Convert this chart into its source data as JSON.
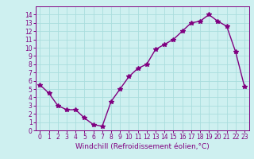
{
  "x": [
    0,
    1,
    2,
    3,
    4,
    5,
    6,
    7,
    8,
    9,
    10,
    11,
    12,
    13,
    14,
    15,
    16,
    17,
    18,
    19,
    20,
    21,
    22,
    23
  ],
  "y": [
    5.5,
    4.5,
    3.0,
    2.5,
    2.5,
    1.5,
    0.7,
    0.5,
    3.5,
    5.0,
    6.5,
    7.5,
    8.0,
    9.8,
    10.4,
    11.0,
    12.0,
    13.0,
    13.2,
    14.0,
    13.2,
    12.6,
    9.5,
    5.3
  ],
  "line_color": "#800080",
  "marker": "*",
  "bg_color": "#cef0f0",
  "grid_color": "#aadddd",
  "xlabel": "Windchill (Refroidissement éolien,°C)",
  "xlim": [
    -0.5,
    23.5
  ],
  "ylim": [
    0,
    15
  ],
  "xticks": [
    0,
    1,
    2,
    3,
    4,
    5,
    6,
    7,
    8,
    9,
    10,
    11,
    12,
    13,
    14,
    15,
    16,
    17,
    18,
    19,
    20,
    21,
    22,
    23
  ],
  "yticks": [
    0,
    1,
    2,
    3,
    4,
    5,
    6,
    7,
    8,
    9,
    10,
    11,
    12,
    13,
    14
  ],
  "tick_color": "#800080",
  "label_color": "#800080",
  "tick_fontsize": 5.5,
  "xlabel_fontsize": 6.5,
  "marker_size": 4,
  "line_width": 1.0
}
